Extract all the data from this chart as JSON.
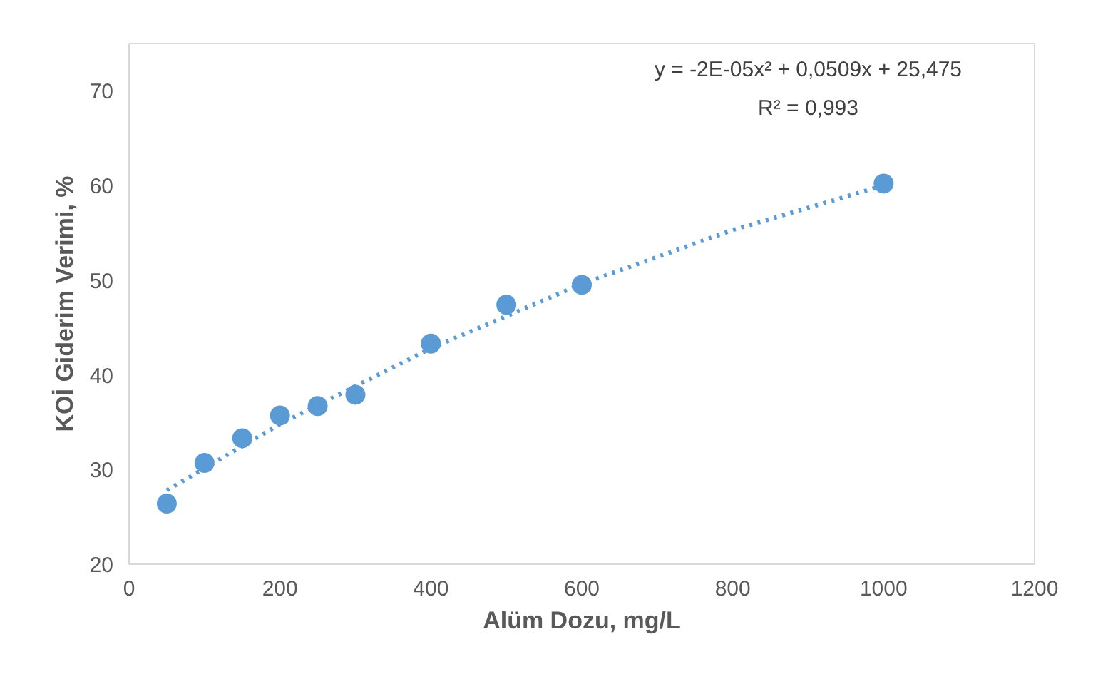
{
  "chart_data": {
    "type": "scatter",
    "xlabel": "Alüm Dozu, mg/L",
    "ylabel": "KOİ Giderim Verimi, %",
    "xlim": [
      0,
      1200
    ],
    "xticks": [
      0,
      200,
      400,
      600,
      800,
      1000,
      1200
    ],
    "ylim": [
      20,
      75
    ],
    "yticks": [
      20,
      30,
      40,
      50,
      60,
      70
    ],
    "grid": false,
    "marker": "circle",
    "annotations": [
      "y = -2E-05x² + 0,0509x + 25,475",
      "R² = 0,993"
    ],
    "series": [
      {
        "color": "#5b9bd5",
        "x": [
          50,
          100,
          150,
          200,
          250,
          300,
          400,
          500,
          600,
          1000
        ],
        "values": [
          26.4,
          30.7,
          33.3,
          35.7,
          36.7,
          37.9,
          43.3,
          47.4,
          49.5,
          60.2
        ]
      },
      {
        "type": "line",
        "marker": "none",
        "color": "#5b9bd5",
        "line_style": "dotted",
        "x": [
          50,
          200,
          400,
          600,
          800,
          1000
        ],
        "values": [
          27.8,
          34.8,
          42.8,
          49.6,
          55.3,
          60.0
        ]
      }
    ]
  }
}
